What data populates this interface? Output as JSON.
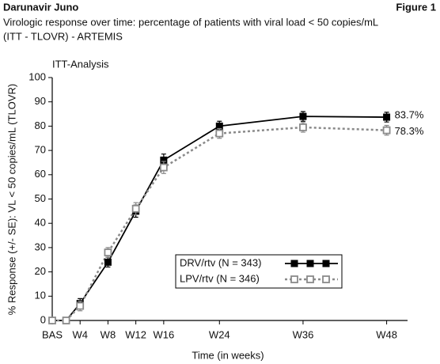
{
  "header": {
    "title": "Darunavir Juno",
    "figure": "Figure 1"
  },
  "chart_data": {
    "type": "line",
    "title": "Virologic response over time: percentage of patients with viral load < 50 copies/mL",
    "subtitle": "(ITT - TLOVR) - ARTEMIS",
    "annotation": "ITT-Analysis",
    "x_label": "Time (in weeks)",
    "y_label": "% Response (+/- SE): VL < 50 copies/mL (TLOVR)",
    "x": [
      0,
      2,
      4,
      8,
      12,
      16,
      24,
      36,
      48
    ],
    "xlim": [
      0,
      51
    ],
    "xticks": [
      {
        "value": 0,
        "label": "BAS"
      },
      {
        "value": 4,
        "label": "W4"
      },
      {
        "value": 8,
        "label": "W8"
      },
      {
        "value": 12,
        "label": "W12"
      },
      {
        "value": 16,
        "label": "W16"
      },
      {
        "value": 24,
        "label": "W24"
      },
      {
        "value": 36,
        "label": "W36"
      },
      {
        "value": 48,
        "label": "W48"
      }
    ],
    "ylim": [
      0,
      100
    ],
    "yticks": [
      0,
      10,
      20,
      30,
      40,
      50,
      60,
      70,
      80,
      90,
      100
    ],
    "grid": false,
    "legend": "lower-right",
    "series": [
      {
        "name": "DRV/rtv (N = 343)",
        "color": "#000000",
        "dashed": false,
        "filled": true,
        "values": [
          0,
          0,
          7,
          24,
          45,
          66,
          80,
          84,
          83.7
        ],
        "errors": [
          0,
          0,
          2,
          2,
          2.5,
          2.5,
          2,
          2,
          2
        ],
        "value_labels": [
          null,
          null,
          null,
          null,
          null,
          null,
          null,
          null,
          "83.7%"
        ]
      },
      {
        "name": "LPV/rtv (N = 346)",
        "color": "#8a8a8a",
        "dashed": true,
        "filled": false,
        "values": [
          0,
          0,
          6,
          28,
          46,
          63,
          77,
          79.5,
          78.3
        ],
        "errors": [
          0,
          0,
          2,
          2,
          2.5,
          2.5,
          2,
          2,
          2
        ],
        "value_labels": [
          null,
          null,
          null,
          null,
          null,
          null,
          null,
          null,
          "78.3%"
        ]
      }
    ]
  }
}
